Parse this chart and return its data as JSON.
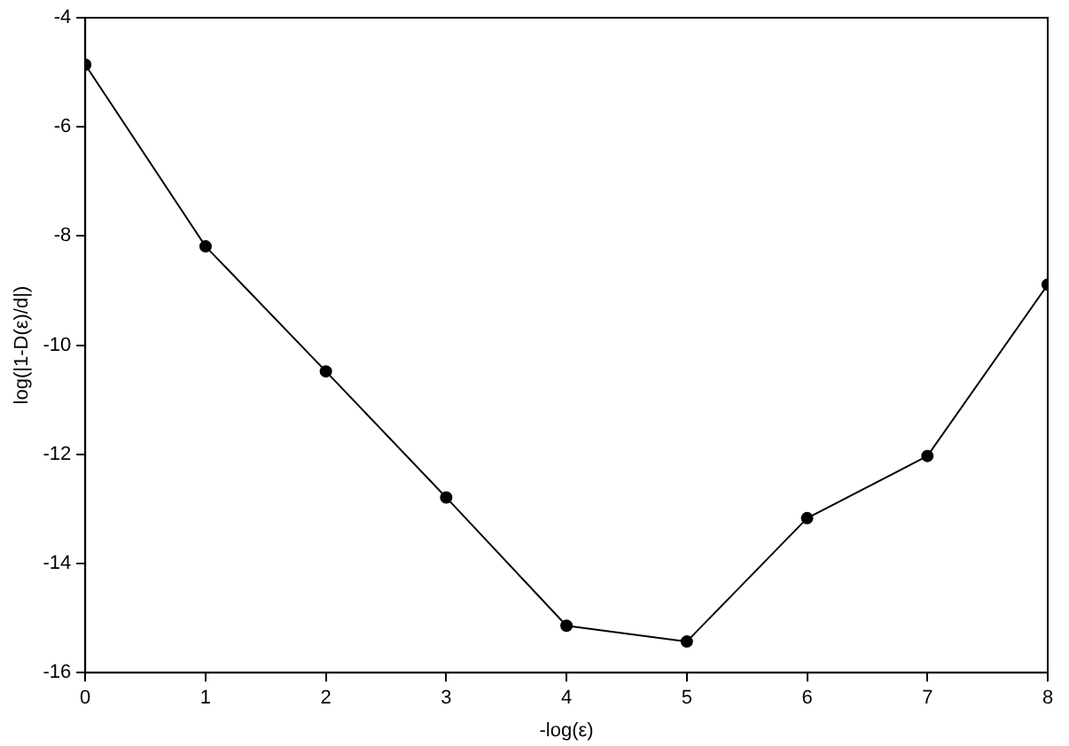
{
  "chart_data": {
    "type": "line",
    "xlabel": "-log(ε)",
    "ylabel": "log(|1-D(ε)/d|)",
    "x": [
      0,
      1,
      2,
      3,
      4,
      5,
      6,
      7,
      8
    ],
    "series": [
      {
        "color": "#000000",
        "values": [
          -4.86,
          -8.19,
          -10.48,
          -12.79,
          -15.14,
          -15.43,
          -13.17,
          -12.03,
          -8.89
        ]
      }
    ],
    "xlim": [
      0,
      8
    ],
    "xticks": [
      0,
      1,
      2,
      3,
      4,
      5,
      6,
      7,
      8
    ],
    "ylim": [
      -16,
      -4
    ],
    "yticks": [
      -16,
      -14,
      -12,
      -10,
      -8,
      -6,
      -4
    ],
    "grid": false,
    "legend": false,
    "marker": "circle",
    "line_style": "solid"
  }
}
